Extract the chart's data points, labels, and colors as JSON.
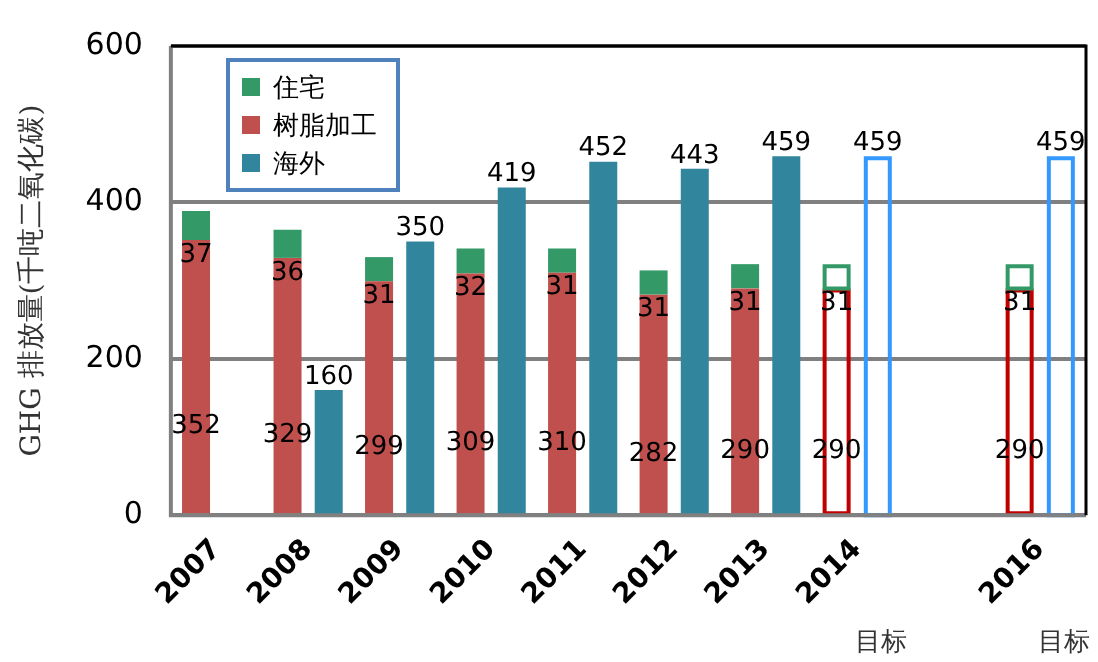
{
  "chart_data": {
    "type": "bar",
    "ylabel": "GHG 排放量(千吨二氧化碳)",
    "categories": [
      "2007",
      "2008",
      "2009",
      "2010",
      "2011",
      "2012",
      "2013",
      "2014",
      null,
      "2016"
    ],
    "series": [
      {
        "name": "树脂加工",
        "color": "#c0504d",
        "values": [
          352,
          329,
          299,
          309,
          310,
          282,
          290,
          null,
          null,
          null
        ]
      },
      {
        "name": "住宅",
        "color": "#339966",
        "values": [
          37,
          36,
          31,
          32,
          31,
          31,
          31,
          null,
          null,
          null
        ]
      },
      {
        "name": "海外",
        "color": "#31859c",
        "axis": "y2",
        "values": [
          null,
          160,
          350,
          419,
          452,
          443,
          459,
          null,
          null,
          null
        ]
      },
      {
        "color": "#c00000",
        "line_style": "solid",
        "values": [
          null,
          null,
          null,
          null,
          null,
          null,
          null,
          290,
          null,
          290
        ]
      },
      {
        "color": "#339966",
        "line_style": "solid",
        "values": [
          null,
          null,
          null,
          null,
          null,
          null,
          null,
          31,
          null,
          31
        ]
      },
      {
        "color": "#3399ff",
        "line_style": "solid",
        "axis": "y2",
        "values": [
          null,
          null,
          null,
          null,
          null,
          null,
          null,
          459,
          null,
          459
        ]
      }
    ],
    "stacked": true,
    "y2lim": [
      0,
      600
    ],
    "annotations": [
      "目标",
      "目标"
    ],
    "ylim": [
      0,
      600
    ],
    "yticks": [
      0,
      200,
      400,
      600
    ],
    "grid": "y",
    "legend": "top left",
    "data_labels": true
  }
}
